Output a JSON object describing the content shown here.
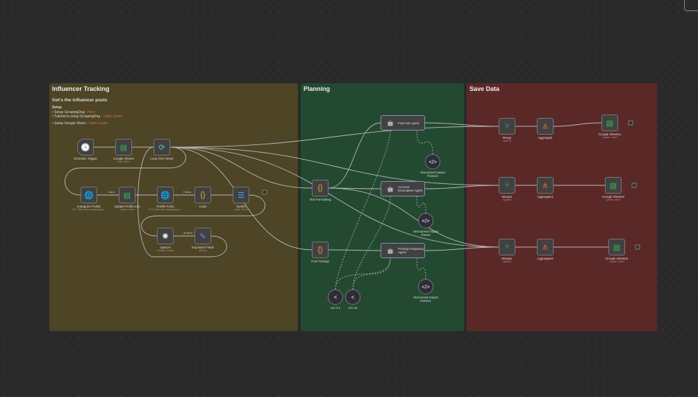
{
  "panels": {
    "influencer": {
      "title": "Influencer Tracking",
      "color": "#4e4426",
      "note": {
        "heading": "Get's the influencer posts",
        "sub": "Setup",
        "items": [
          {
            "text": "Setup ScrapingDog - ",
            "link": "Here"
          },
          {
            "text": "Tutorial to setup ScrapingDog - ",
            "link": "Video Guide"
          },
          {
            "text": "Setup Google Sheet - ",
            "link": "Video Guide"
          }
        ]
      }
    },
    "planning": {
      "title": "Planning",
      "color": "#234a31"
    },
    "save": {
      "title": "Save Data",
      "color": "#5b2828"
    }
  },
  "nodes": [
    {
      "id": "schedule",
      "label": "Schedule Trigger",
      "sub": "",
      "icon": "clock-icon",
      "glyph": "🕓"
    },
    {
      "id": "gsheets",
      "label": "Google Sheets",
      "sub": "read: sheet",
      "icon": "google-sheets-icon",
      "glyph": "▤"
    },
    {
      "id": "loop",
      "label": "Loop Over Items",
      "sub": "",
      "icon": "loop-icon",
      "glyph": "⟳"
    },
    {
      "id": "insta",
      "label": "Instagram Profile",
      "sub": "GET: https://api.scrapingdog.c...",
      "icon": "globe-icon",
      "glyph": "🌐"
    },
    {
      "id": "upd",
      "label": "Update Profile Info",
      "sub": "update: sheet",
      "icon": "google-sheets-icon",
      "glyph": "▤"
    },
    {
      "id": "posts",
      "label": "Profile Posts",
      "sub": "GET: https://api.scrapingdog.c...",
      "icon": "globe-icon",
      "glyph": "🌐"
    },
    {
      "id": "code",
      "label": "Code",
      "sub": "",
      "icon": "code-braces-icon",
      "glyph": "{}"
    },
    {
      "id": "switch",
      "label": "Switch",
      "sub": "mode: Rules",
      "icon": "switch-icon",
      "glyph": "☰"
    },
    {
      "id": "openai",
      "label": "OpenAI",
      "sub": "analyze: image",
      "icon": "openai-icon",
      "glyph": "✺"
    },
    {
      "id": "fields",
      "label": "Important Fields",
      "sub": "manual",
      "icon": "pencil-icon",
      "glyph": "✎"
    },
    {
      "id": "textfmt",
      "label": "Text Formatting",
      "sub": "",
      "icon": "code-braces-icon",
      "glyph": "{}"
    },
    {
      "id": "timings",
      "label": "Post Timings",
      "sub": "",
      "icon": "code-braces-icon",
      "glyph": "{}"
    },
    {
      "id": "paid",
      "label": "Paid Ads Agent",
      "sub": "",
      "icon": "robot-icon",
      "glyph": "🤖",
      "agent": true
    },
    {
      "id": "acct",
      "label": "Account Description Agent",
      "sub": "",
      "icon": "robot-icon",
      "glyph": "🤖",
      "agent": true
    },
    {
      "id": "freq",
      "label": "Posting Frequency Agent",
      "sub": "",
      "icon": "robot-icon",
      "glyph": "🤖",
      "agent": true
    },
    {
      "id": "sop2",
      "label": "Structured Output Parser2",
      "sub": "",
      "icon": "code-tag-icon",
      "glyph": "</>",
      "circ": true
    },
    {
      "id": "sop",
      "label": "Structured Output Parser",
      "sub": "",
      "icon": "code-tag-icon",
      "glyph": "</>",
      "circ": true
    },
    {
      "id": "sop1",
      "label": "Structured Output Parser1",
      "sub": "",
      "icon": "code-tag-icon",
      "glyph": "</>",
      "circ": true
    },
    {
      "id": "oai41",
      "label": "oAi 4.1",
      "sub": "",
      "icon": "chat-model-icon",
      "glyph": "<",
      "circ": true
    },
    {
      "id": "oaio3",
      "label": "oAi o3",
      "sub": "",
      "icon": "chat-model-icon",
      "glyph": "<",
      "circ": true
    },
    {
      "id": "merge",
      "label": "Merge",
      "sub": "append",
      "icon": "merge-icon",
      "glyph": "⑂"
    },
    {
      "id": "agg",
      "label": "Aggregate",
      "sub": "",
      "icon": "aggregate-icon",
      "glyph": "⋔"
    },
    {
      "id": "gs1",
      "label": "Google Sheets1",
      "sub": "update: sheet",
      "icon": "google-sheets-icon",
      "glyph": "▤"
    },
    {
      "id": "merge1",
      "label": "Merge1",
      "sub": "append",
      "icon": "merge-icon",
      "glyph": "⑂"
    },
    {
      "id": "agg1",
      "label": "Aggregate1",
      "sub": "",
      "icon": "aggregate-icon",
      "glyph": "⋔"
    },
    {
      "id": "gs2",
      "label": "Google Sheets2",
      "sub": "update: sheet",
      "icon": "google-sheets-icon",
      "glyph": "▤"
    },
    {
      "id": "merge2",
      "label": "Merge2",
      "sub": "append",
      "icon": "merge-icon",
      "glyph": "⑂"
    },
    {
      "id": "agg2",
      "label": "Aggregate2",
      "sub": "",
      "icon": "aggregate-icon",
      "glyph": "⋔"
    },
    {
      "id": "gs3",
      "label": "Google Sheets3",
      "sub": "update: sheet",
      "icon": "google-sheets-icon",
      "glyph": "▤"
    }
  ],
  "edge_labels": [
    "1 item",
    "5 items",
    "25 items"
  ],
  "colors": {
    "sheets": "#3fb950",
    "globe": "#7b6cf0",
    "code": "#f0a030",
    "loop": "#4fd1a5",
    "switch": "#4aa3f0",
    "merge": "#49b6d6",
    "aggregate": "#e0603a",
    "pencil": "#8b7cf6"
  }
}
